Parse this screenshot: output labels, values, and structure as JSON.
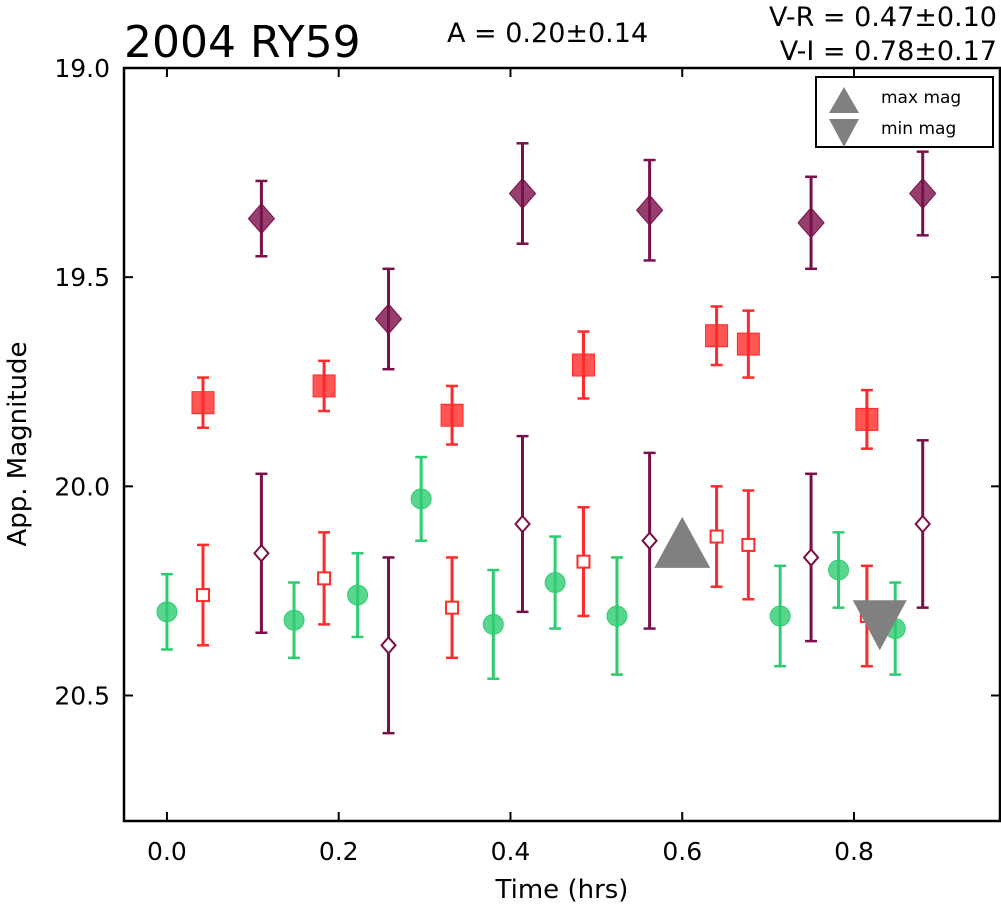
{
  "chart_data": {
    "type": "scatter",
    "title": "2004 RY59",
    "annotations": {
      "amplitude": "A  = 0.20±0.14",
      "v_r": "V-R = 0.47±0.10",
      "v_i": "V-I  = 0.78±0.17"
    },
    "xlabel": "Time (hrs)",
    "ylabel": "App. Magnitude",
    "xlim": [
      -0.05,
      0.97
    ],
    "ylim": [
      20.8,
      19.0
    ],
    "y_inverted": true,
    "grid": false,
    "legend_position": "top-right",
    "x_ticks": [
      "0.0",
      "0.2",
      "0.4",
      "0.6",
      "0.8"
    ],
    "y_ticks": [
      "19.0",
      "19.5",
      "20.0",
      "20.5"
    ],
    "legend": [
      {
        "label": "max mag",
        "marker": "triangle-up"
      },
      {
        "label": "min mag",
        "marker": "triangle-down"
      }
    ],
    "colors": {
      "green": "#2ecc71",
      "red": "#ff2a2a",
      "purple": "#7b0f4a",
      "gray": "#808080"
    },
    "series": [
      {
        "marker": "circle",
        "filled": true,
        "color": "#2ecc71",
        "points": [
          {
            "x": 0.0,
            "y": 20.3,
            "err": 0.09
          },
          {
            "x": 0.148,
            "y": 20.32,
            "err": 0.09
          },
          {
            "x": 0.222,
            "y": 20.26,
            "err": 0.1
          },
          {
            "x": 0.296,
            "y": 20.03,
            "err": 0.1
          },
          {
            "x": 0.38,
            "y": 20.33,
            "err": 0.13
          },
          {
            "x": 0.452,
            "y": 20.23,
            "err": 0.11
          },
          {
            "x": 0.524,
            "y": 20.31,
            "err": 0.14
          },
          {
            "x": 0.714,
            "y": 20.31,
            "err": 0.12
          },
          {
            "x": 0.782,
            "y": 20.2,
            "err": 0.09
          },
          {
            "x": 0.848,
            "y": 20.34,
            "err": 0.11
          }
        ]
      },
      {
        "marker": "square",
        "filled": true,
        "color": "#ff2a2a",
        "points": [
          {
            "x": 0.042,
            "y": 19.8,
            "err": 0.06
          },
          {
            "x": 0.183,
            "y": 19.76,
            "err": 0.06
          },
          {
            "x": 0.332,
            "y": 19.83,
            "err": 0.07
          },
          {
            "x": 0.485,
            "y": 19.71,
            "err": 0.08
          },
          {
            "x": 0.64,
            "y": 19.64,
            "err": 0.07
          },
          {
            "x": 0.677,
            "y": 19.66,
            "err": 0.08
          },
          {
            "x": 0.815,
            "y": 19.84,
            "err": 0.07
          }
        ]
      },
      {
        "marker": "square",
        "filled": false,
        "color": "#ff2a2a",
        "points": [
          {
            "x": 0.042,
            "y": 20.26,
            "err": 0.12
          },
          {
            "x": 0.183,
            "y": 20.22,
            "err": 0.11
          },
          {
            "x": 0.332,
            "y": 20.29,
            "err": 0.12
          },
          {
            "x": 0.485,
            "y": 20.18,
            "err": 0.13
          },
          {
            "x": 0.64,
            "y": 20.12,
            "err": 0.12
          },
          {
            "x": 0.677,
            "y": 20.14,
            "err": 0.13
          },
          {
            "x": 0.815,
            "y": 20.31,
            "err": 0.12
          }
        ]
      },
      {
        "marker": "diamond",
        "filled": true,
        "color": "#7b0f4a",
        "points": [
          {
            "x": 0.11,
            "y": 19.36,
            "err": 0.09
          },
          {
            "x": 0.258,
            "y": 19.6,
            "err": 0.12
          },
          {
            "x": 0.414,
            "y": 19.3,
            "err": 0.12
          },
          {
            "x": 0.562,
            "y": 19.34,
            "err": 0.12
          },
          {
            "x": 0.75,
            "y": 19.37,
            "err": 0.11
          },
          {
            "x": 0.88,
            "y": 19.3,
            "err": 0.1
          }
        ]
      },
      {
        "marker": "diamond",
        "filled": false,
        "color": "#7b0f4a",
        "points": [
          {
            "x": 0.11,
            "y": 20.16,
            "err": 0.19
          },
          {
            "x": 0.258,
            "y": 20.38,
            "err": 0.21
          },
          {
            "x": 0.414,
            "y": 20.09,
            "err": 0.21
          },
          {
            "x": 0.562,
            "y": 20.13,
            "err": 0.21
          },
          {
            "x": 0.75,
            "y": 20.17,
            "err": 0.2
          },
          {
            "x": 0.88,
            "y": 20.09,
            "err": 0.2
          }
        ]
      },
      {
        "marker": "triangle-up",
        "filled": true,
        "color": "#808080",
        "points": [
          {
            "x": 0.6,
            "y": 20.14,
            "err": 0
          }
        ]
      },
      {
        "marker": "triangle-down",
        "filled": true,
        "color": "#808080",
        "points": [
          {
            "x": 0.83,
            "y": 20.32,
            "err": 0
          }
        ]
      }
    ]
  }
}
